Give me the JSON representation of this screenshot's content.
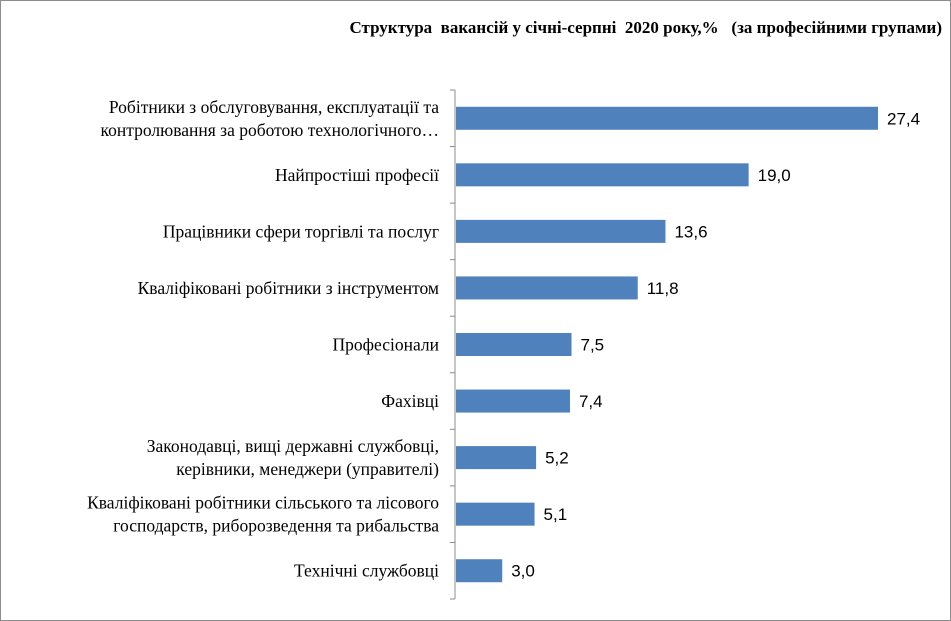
{
  "chart_data": {
    "type": "bar",
    "orientation": "horizontal",
    "title": "Структура  вакансій у січні-серпні  2020 року,%   (за професійними групами)",
    "categories": [
      [
        "Робітники з обслуговування, експлуатації та",
        "контролювання за роботою технологічного…"
      ],
      [
        "Найпростіші професії"
      ],
      [
        "Працівники сфери торгівлі та послуг"
      ],
      [
        "Кваліфіковані робітники з інструментом"
      ],
      [
        "Професіонали"
      ],
      [
        "Фахівці"
      ],
      [
        "Законодавці, вищі державні службовці,",
        "керівники, менеджери  (управителі)"
      ],
      [
        "Кваліфіковані робітники сільського та лісового",
        "господарств, риборозведення та рибальства"
      ],
      [
        "Технічні службовці"
      ]
    ],
    "values": [
      27.4,
      19.0,
      13.6,
      11.8,
      7.5,
      7.4,
      5.2,
      5.1,
      3.0
    ],
    "value_labels": [
      "27,4",
      "19,0",
      "13,6",
      "11,8",
      "7,5",
      "7,4",
      "5,2",
      "5,1",
      "3,0"
    ],
    "xlim": [
      0,
      30
    ],
    "bar_color": "#4f81bd",
    "grid": false,
    "legend": "none"
  }
}
